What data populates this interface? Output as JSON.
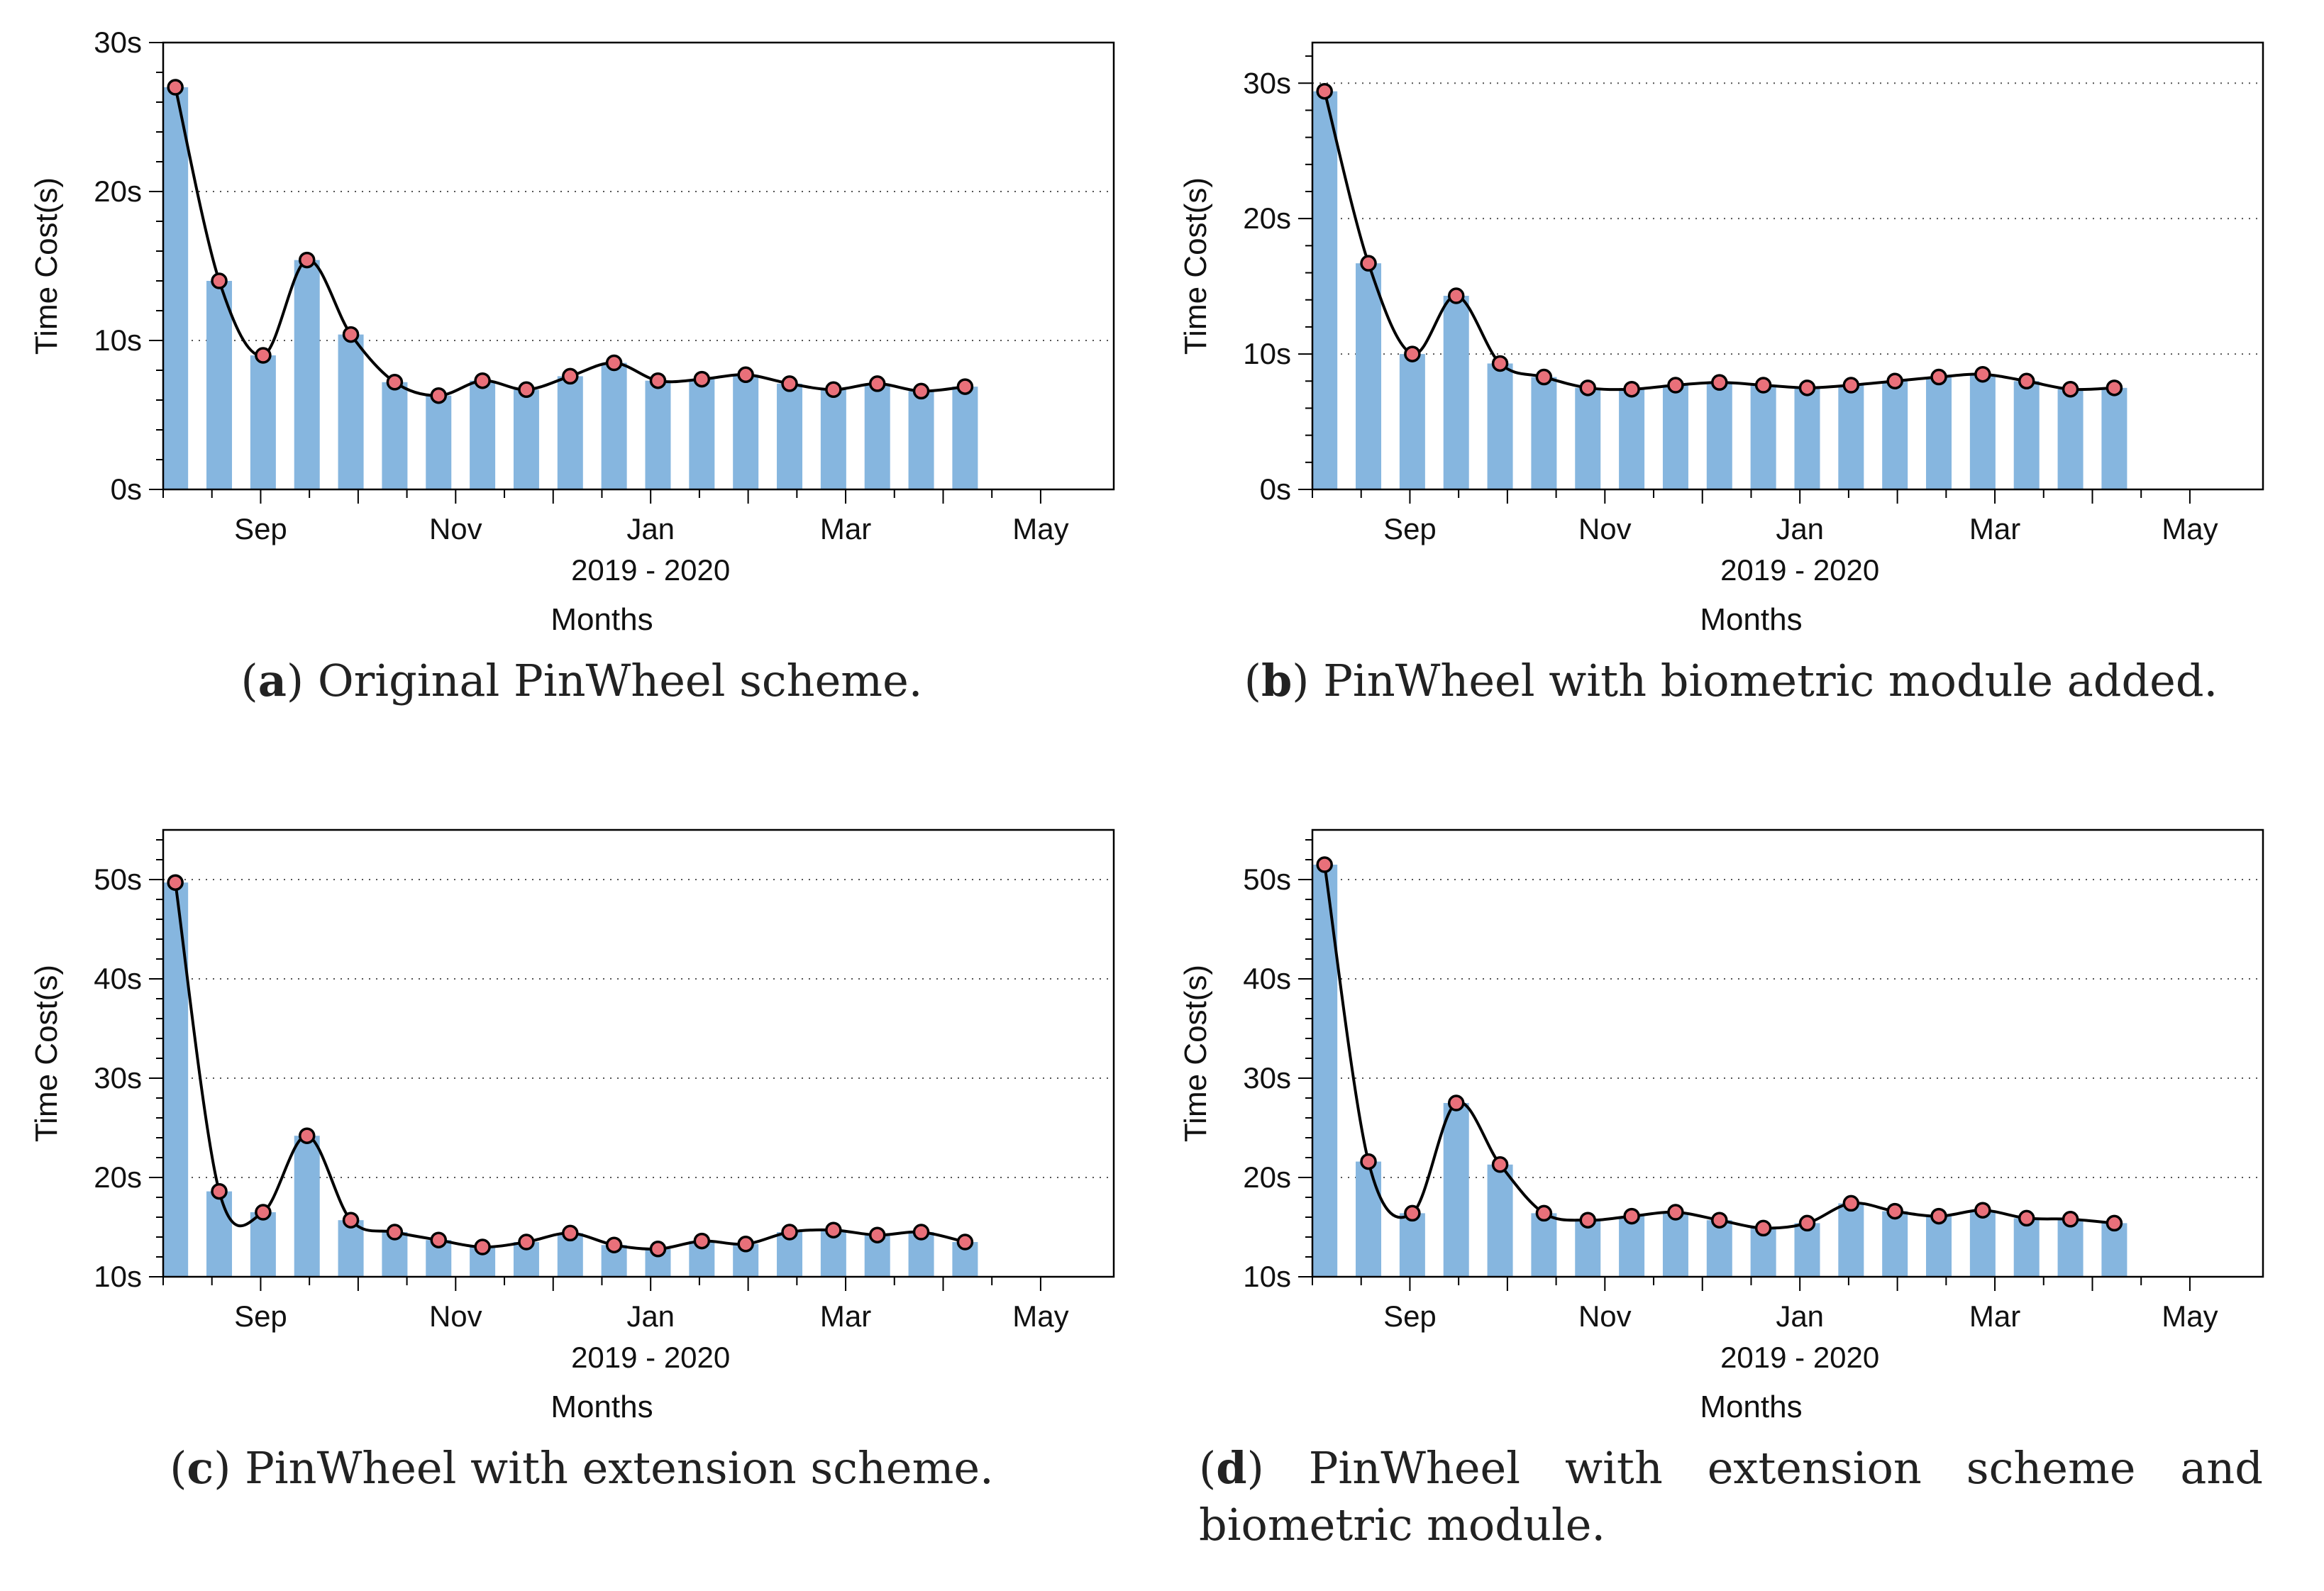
{
  "panels": [
    {
      "id": "a",
      "caption_letter": "a",
      "caption_text": "Original PinWheel scheme.",
      "chart_data": {
        "type": "bar",
        "title": "",
        "xlabel": "Months",
        "year_label": "2019 - 2020",
        "ylabel": "Time Cost(s)",
        "ylim": [
          0,
          30
        ],
        "yticks": [
          0,
          10,
          20,
          30
        ],
        "ytick_labels": [
          "0s",
          "10s",
          "20s",
          "30s"
        ],
        "xlim": [
          0,
          19.5
        ],
        "xticks": [
          {
            "pos": 2,
            "label": "Sep"
          },
          {
            "pos": 6,
            "label": "Nov"
          },
          {
            "pos": 10,
            "label": "Jan"
          },
          {
            "pos": 14,
            "label": "Mar"
          },
          {
            "pos": 18,
            "label": "May"
          }
        ],
        "grid": true,
        "bar_color": "#86b6df",
        "marker_color": "#e9707a",
        "line_color": "#000000",
        "x": [
          0.25,
          1.15,
          2.05,
          2.95,
          3.85,
          4.75,
          5.65,
          6.55,
          7.45,
          8.35,
          9.25,
          10.15,
          11.05,
          11.95,
          12.85,
          13.75,
          14.65,
          15.55,
          16.45
        ],
        "values": [
          27,
          14,
          9,
          15.4,
          10.4,
          7.2,
          6.3,
          7.3,
          6.7,
          7.6,
          8.5,
          7.3,
          7.4,
          7.7,
          7.1,
          6.7,
          7.1,
          6.6,
          6.9
        ]
      }
    },
    {
      "id": "b",
      "caption_letter": "b",
      "caption_text": "PinWheel with biometric module added.",
      "chart_data": {
        "type": "bar",
        "title": "",
        "xlabel": "Months",
        "year_label": "2019 - 2020",
        "ylabel": "Time Cost(s)",
        "ylim": [
          0,
          33
        ],
        "yticks": [
          0,
          10,
          20,
          30
        ],
        "ytick_labels": [
          "0s",
          "10s",
          "20s",
          "30s"
        ],
        "xlim": [
          0,
          19.5
        ],
        "xticks": [
          {
            "pos": 2,
            "label": "Sep"
          },
          {
            "pos": 6,
            "label": "Nov"
          },
          {
            "pos": 10,
            "label": "Jan"
          },
          {
            "pos": 14,
            "label": "Mar"
          },
          {
            "pos": 18,
            "label": "May"
          }
        ],
        "grid": true,
        "bar_color": "#86b6df",
        "marker_color": "#e9707a",
        "line_color": "#000000",
        "x": [
          0.25,
          1.15,
          2.05,
          2.95,
          3.85,
          4.75,
          5.65,
          6.55,
          7.45,
          8.35,
          9.25,
          10.15,
          11.05,
          11.95,
          12.85,
          13.75,
          14.65,
          15.55,
          16.45
        ],
        "values": [
          29.4,
          16.7,
          10,
          14.3,
          9.3,
          8.3,
          7.5,
          7.4,
          7.7,
          7.9,
          7.7,
          7.5,
          7.7,
          8.0,
          8.3,
          8.5,
          8.0,
          7.4,
          7.5
        ]
      }
    },
    {
      "id": "c",
      "caption_letter": "c",
      "caption_text": "PinWheel with extension scheme.",
      "chart_data": {
        "type": "bar",
        "title": "",
        "xlabel": "Months",
        "year_label": "2019 - 2020",
        "ylabel": "Time Cost(s)",
        "ylim": [
          10,
          55
        ],
        "yticks": [
          10,
          20,
          30,
          40,
          50
        ],
        "ytick_labels": [
          "10s",
          "20s",
          "30s",
          "40s",
          "50s"
        ],
        "xlim": [
          0,
          19.5
        ],
        "xticks": [
          {
            "pos": 2,
            "label": "Sep"
          },
          {
            "pos": 6,
            "label": "Nov"
          },
          {
            "pos": 10,
            "label": "Jan"
          },
          {
            "pos": 14,
            "label": "Mar"
          },
          {
            "pos": 18,
            "label": "May"
          }
        ],
        "grid": true,
        "bar_color": "#86b6df",
        "marker_color": "#e9707a",
        "line_color": "#000000",
        "x": [
          0.25,
          1.15,
          2.05,
          2.95,
          3.85,
          4.75,
          5.65,
          6.55,
          7.45,
          8.35,
          9.25,
          10.15,
          11.05,
          11.95,
          12.85,
          13.75,
          14.65,
          15.55,
          16.45
        ],
        "values": [
          49.7,
          18.6,
          16.5,
          24.2,
          15.7,
          14.5,
          13.7,
          13.0,
          13.5,
          14.4,
          13.2,
          12.8,
          13.6,
          13.3,
          14.5,
          14.7,
          14.2,
          14.5,
          13.5
        ]
      }
    },
    {
      "id": "d",
      "caption_letter": "d",
      "caption_text": "PinWheel with extension scheme and biometric module.",
      "chart_data": {
        "type": "bar",
        "title": "",
        "xlabel": "Months",
        "year_label": "2019 - 2020",
        "ylabel": "Time Cost(s)",
        "ylim": [
          10,
          55
        ],
        "yticks": [
          10,
          20,
          30,
          40,
          50
        ],
        "ytick_labels": [
          "10s",
          "20s",
          "30s",
          "40s",
          "50s"
        ],
        "xlim": [
          0,
          19.5
        ],
        "xticks": [
          {
            "pos": 2,
            "label": "Sep"
          },
          {
            "pos": 6,
            "label": "Nov"
          },
          {
            "pos": 10,
            "label": "Jan"
          },
          {
            "pos": 14,
            "label": "Mar"
          },
          {
            "pos": 18,
            "label": "May"
          }
        ],
        "grid": true,
        "bar_color": "#86b6df",
        "marker_color": "#e9707a",
        "line_color": "#000000",
        "x": [
          0.25,
          1.15,
          2.05,
          2.95,
          3.85,
          4.75,
          5.65,
          6.55,
          7.45,
          8.35,
          9.25,
          10.15,
          11.05,
          11.95,
          12.85,
          13.75,
          14.65,
          15.55,
          16.45
        ],
        "values": [
          51.5,
          21.6,
          16.4,
          27.5,
          21.3,
          16.4,
          15.7,
          16.1,
          16.5,
          15.7,
          14.9,
          15.4,
          17.4,
          16.6,
          16.1,
          16.7,
          15.9,
          15.8,
          15.4
        ]
      }
    }
  ]
}
